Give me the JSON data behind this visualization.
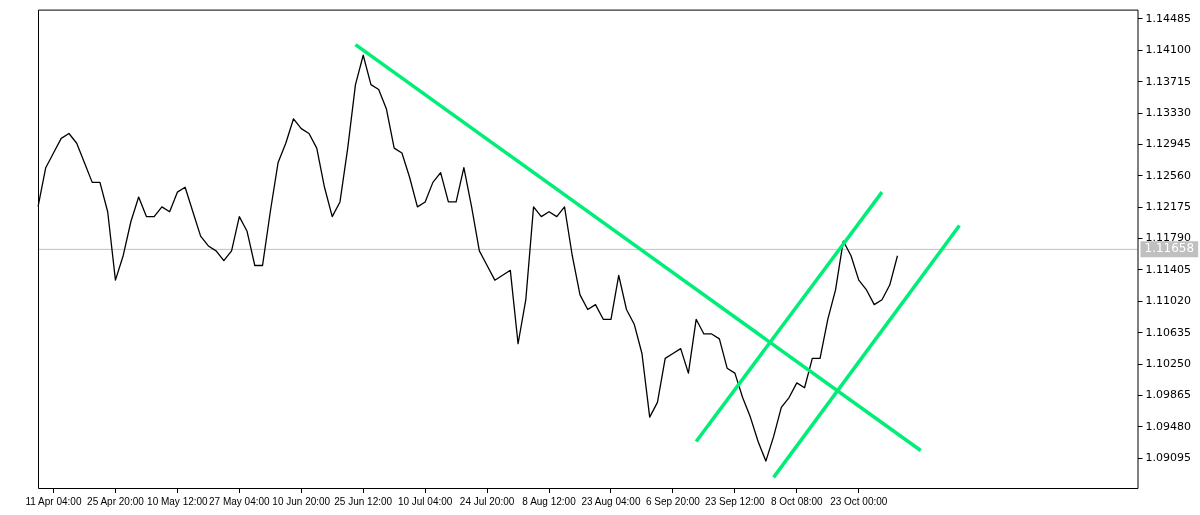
{
  "chart_data": {
    "type": "line",
    "categories": [
      null,
      null,
      "11 Apr 04:00",
      null,
      null,
      null,
      null,
      null,
      null,
      null,
      "25 Apr 20:00",
      null,
      null,
      null,
      null,
      null,
      null,
      null,
      "10 May 12:00",
      null,
      null,
      null,
      null,
      null,
      null,
      null,
      "27 May 04:00",
      null,
      null,
      null,
      null,
      null,
      null,
      null,
      "10 Jun 20:00",
      null,
      null,
      null,
      null,
      null,
      null,
      null,
      "25 Jun 12:00",
      null,
      null,
      null,
      null,
      null,
      null,
      null,
      "10 Jul 04:00",
      null,
      null,
      null,
      null,
      null,
      null,
      null,
      "24 Jul 20:00",
      null,
      null,
      null,
      null,
      null,
      null,
      null,
      "8 Aug 12:00",
      null,
      null,
      null,
      null,
      null,
      null,
      null,
      "23 Aug 04:00",
      null,
      null,
      null,
      null,
      null,
      null,
      null,
      "6 Sep 20:00",
      null,
      null,
      null,
      null,
      null,
      null,
      null,
      "23 Sep 12:00",
      null,
      null,
      null,
      null,
      null,
      null,
      null,
      "8 Oct 08:00",
      null,
      null,
      null,
      null,
      null,
      null,
      null,
      "23 Oct 00:00",
      null,
      null,
      null,
      null,
      null,
      null,
      null,
      null,
      null,
      null,
      null,
      null,
      null,
      null,
      null,
      null,
      null,
      null,
      null,
      null,
      null,
      null,
      null,
      null,
      null,
      null,
      null,
      null,
      null,
      null,
      null,
      null,
      null,
      null,
      null,
      null
    ],
    "series": [
      {
        "color": "#000000",
        "values": [
          1.1218,
          1.1266,
          1.1284,
          1.1302,
          1.1308,
          1.1296,
          1.1272,
          1.1248,
          1.1248,
          1.1212,
          1.1128,
          1.1158,
          1.12,
          1.123,
          1.1206,
          1.1206,
          1.1218,
          1.1212,
          1.1236,
          1.1242,
          1.1212,
          1.1182,
          1.117,
          1.1164,
          1.1152,
          1.1164,
          1.1206,
          1.1188,
          1.1146,
          1.1146,
          1.1212,
          1.1272,
          1.1296,
          1.1326,
          1.1314,
          1.1308,
          1.129,
          1.1242,
          1.1206,
          1.1224,
          1.129,
          1.1368,
          1.1404,
          1.1368,
          1.1362,
          1.1338,
          1.129,
          1.1284,
          1.1254,
          1.1218,
          1.1224,
          1.1248,
          1.126,
          1.1224,
          1.1224,
          1.1266,
          1.1218,
          1.1164,
          1.1146,
          1.1128,
          1.1134,
          1.114,
          1.105,
          1.1104,
          1.1218,
          1.1206,
          1.1212,
          1.1206,
          1.1218,
          1.1158,
          1.111,
          1.1092,
          1.1098,
          1.108,
          1.108,
          1.1134,
          1.1092,
          1.1074,
          1.1038,
          1.096,
          1.0978,
          1.1032,
          1.1038,
          1.1044,
          1.1014,
          1.108,
          1.1062,
          1.1062,
          1.1056,
          1.102,
          1.1014,
          1.0984,
          1.096,
          1.093,
          1.0906,
          1.0936,
          1.0972,
          1.0984,
          1.1002,
          1.0996,
          1.1032,
          1.1032,
          1.108,
          1.1116,
          1.1176,
          1.1158,
          1.1128,
          1.1116,
          1.1098,
          1.1104,
          1.1122,
          1.1158,
          null,
          null,
          null,
          null,
          null,
          null,
          null,
          null,
          null,
          null,
          null,
          null,
          null,
          null,
          null,
          null,
          null,
          null,
          null,
          null,
          null,
          null,
          null,
          null,
          null,
          null,
          null,
          null,
          null,
          null,
          null
        ]
      },
      {
        "color": "#00ee77",
        "values": [
          null,
          null,
          null,
          null,
          null,
          null,
          null,
          null,
          null,
          null,
          null,
          null,
          null,
          null,
          null,
          null,
          null,
          null,
          null,
          null,
          null,
          null,
          null,
          null,
          null,
          null,
          null,
          null,
          null,
          null,
          null,
          null,
          null,
          null,
          null,
          null,
          null,
          null,
          null,
          null,
          null,
          1.1417,
          null,
          null,
          null,
          null,
          null,
          null,
          null,
          null,
          null,
          null,
          null,
          null,
          null,
          null,
          null,
          null,
          null,
          null,
          null,
          null,
          null,
          null,
          null,
          null,
          null,
          null,
          null,
          null,
          null,
          null,
          null,
          null,
          null,
          null,
          null,
          null,
          null,
          null,
          null,
          null,
          null,
          null,
          null,
          null,
          null,
          null,
          null,
          null,
          null,
          null,
          null,
          null,
          null,
          null,
          null,
          null,
          null,
          null,
          null,
          null,
          null,
          null,
          null,
          null,
          null,
          null,
          null,
          null,
          null,
          null,
          null,
          null,
          1.0919,
          null,
          null,
          null,
          null,
          null,
          null,
          null,
          null,
          null,
          null,
          null,
          null,
          null,
          null,
          null,
          null,
          null,
          null,
          null,
          null,
          null,
          null,
          null,
          null,
          null,
          null,
          null,
          null
        ]
      },
      {
        "color": "#00ee77",
        "values": [
          null,
          null,
          null,
          null,
          null,
          null,
          null,
          null,
          null,
          null,
          null,
          null,
          null,
          null,
          null,
          null,
          null,
          null,
          null,
          null,
          null,
          null,
          null,
          null,
          null,
          null,
          null,
          null,
          null,
          null,
          null,
          null,
          null,
          null,
          null,
          null,
          null,
          null,
          null,
          null,
          null,
          null,
          null,
          null,
          null,
          null,
          null,
          null,
          null,
          null,
          null,
          null,
          null,
          null,
          null,
          null,
          null,
          null,
          null,
          null,
          null,
          null,
          null,
          null,
          null,
          null,
          null,
          null,
          null,
          null,
          null,
          null,
          null,
          null,
          null,
          null,
          null,
          null,
          null,
          null,
          null,
          null,
          null,
          null,
          null,
          1.093,
          null,
          null,
          null,
          null,
          null,
          null,
          null,
          null,
          null,
          null,
          null,
          null,
          null,
          null,
          null,
          null,
          null,
          null,
          null,
          null,
          null,
          null,
          null,
          1.1236,
          null,
          null,
          null,
          null,
          null,
          null,
          null,
          null,
          null,
          null,
          null,
          null,
          null,
          null,
          null,
          null,
          null,
          null,
          null,
          null,
          null,
          null,
          null,
          null,
          null,
          null,
          null,
          null,
          null,
          null,
          null,
          null,
          null
        ]
      },
      {
        "color": "#00ee77",
        "values": [
          null,
          null,
          null,
          null,
          null,
          null,
          null,
          null,
          null,
          null,
          null,
          null,
          null,
          null,
          null,
          null,
          null,
          null,
          null,
          null,
          null,
          null,
          null,
          null,
          null,
          null,
          null,
          null,
          null,
          null,
          null,
          null,
          null,
          null,
          null,
          null,
          null,
          null,
          null,
          null,
          null,
          null,
          null,
          null,
          null,
          null,
          null,
          null,
          null,
          null,
          null,
          null,
          null,
          null,
          null,
          null,
          null,
          null,
          null,
          null,
          null,
          null,
          null,
          null,
          null,
          null,
          null,
          null,
          null,
          null,
          null,
          null,
          null,
          null,
          null,
          null,
          null,
          null,
          null,
          null,
          null,
          null,
          null,
          null,
          null,
          null,
          null,
          null,
          null,
          null,
          null,
          null,
          null,
          null,
          null,
          1.0886,
          null,
          null,
          null,
          null,
          null,
          null,
          null,
          null,
          null,
          null,
          null,
          null,
          null,
          null,
          null,
          null,
          null,
          null,
          null,
          null,
          null,
          null,
          null,
          1.1195,
          null,
          null,
          null,
          null,
          null,
          null,
          null,
          null,
          null,
          null,
          null,
          null,
          null,
          null,
          null,
          null,
          null,
          null,
          null,
          null,
          null,
          null,
          null
        ]
      }
    ],
    "ylim": [
      1.0873,
      1.146
    ],
    "yticks": [
      {
        "value": 1.09095,
        "label": "1.09095"
      },
      {
        "value": 1.0948,
        "label": "1.09480"
      },
      {
        "value": 1.09865,
        "label": "1.09865"
      },
      {
        "value": 1.1025,
        "label": "1.10250"
      },
      {
        "value": 1.10635,
        "label": "1.10635"
      },
      {
        "value": 1.1102,
        "label": "1.11020"
      },
      {
        "value": 1.11405,
        "label": "1.11405"
      },
      {
        "value": 1.1179,
        "label": "1.11790"
      },
      {
        "value": 1.12175,
        "label": "1.12175"
      },
      {
        "value": 1.1256,
        "label": "1.12560"
      },
      {
        "value": 1.12945,
        "label": "1.12945"
      },
      {
        "value": 1.1333,
        "label": "1.13330"
      },
      {
        "value": 1.13715,
        "label": "1.13715"
      },
      {
        "value": 1.141,
        "label": "1.14100"
      },
      {
        "value": 1.14485,
        "label": "1.14485"
      }
    ],
    "ref_lines": [
      {
        "axis": "y",
        "value": 1.11658,
        "label": "1.11658",
        "color": "#c0c0c0"
      }
    ],
    "grid": false,
    "legend": false,
    "marker": "none",
    "line_style": "solid"
  }
}
